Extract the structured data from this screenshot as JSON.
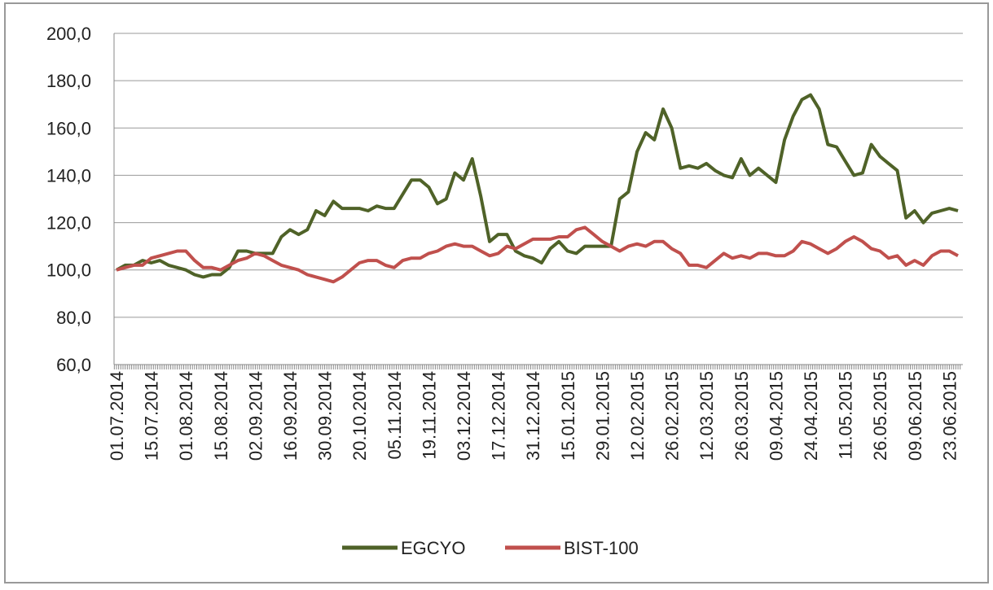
{
  "chart_data": {
    "type": "line",
    "categories": [
      "01.07.2014",
      null,
      null,
      null,
      "15.07.2014",
      null,
      null,
      null,
      "01.08.2014",
      null,
      null,
      null,
      "15.08.2014",
      null,
      null,
      null,
      "02.09.2014",
      null,
      null,
      null,
      "16.09.2014",
      null,
      null,
      null,
      "30.09.2014",
      null,
      null,
      null,
      "20.10.2014",
      null,
      null,
      null,
      "05.11.2014",
      null,
      null,
      null,
      "19.11.2014",
      null,
      null,
      null,
      "03.12.2014",
      null,
      null,
      null,
      "17.12.2014",
      null,
      null,
      null,
      "31.12.2014",
      null,
      null,
      null,
      "15.01.2015",
      null,
      null,
      null,
      "29.01.2015",
      null,
      null,
      null,
      "12.02.2015",
      null,
      null,
      null,
      "26.02.2015",
      null,
      null,
      null,
      "12.03.2015",
      null,
      null,
      null,
      "26.03.2015",
      null,
      null,
      null,
      "09.04.2015",
      null,
      null,
      null,
      "24.04.2015",
      null,
      null,
      null,
      "11.05.2015",
      null,
      null,
      null,
      "26.05.2015",
      null,
      null,
      null,
      "09.06.2015",
      null,
      null,
      null,
      "23.06.2015",
      null
    ],
    "series": [
      {
        "name": "EGCYO",
        "color": "#4f6228",
        "values": [
          100,
          102,
          102,
          104,
          103,
          104,
          102,
          101,
          100,
          98,
          97,
          98,
          98,
          101,
          108,
          108,
          107,
          107,
          107,
          114,
          117,
          115,
          117,
          125,
          123,
          129,
          126,
          126,
          126,
          125,
          127,
          126,
          126,
          132,
          138,
          138,
          135,
          128,
          130,
          141,
          138,
          147,
          131,
          112,
          115,
          115,
          108,
          106,
          105,
          103,
          109,
          112,
          108,
          107,
          110,
          110,
          110,
          110,
          130,
          133,
          150,
          158,
          155,
          168,
          160,
          143,
          144,
          143,
          145,
          142,
          140,
          139,
          147,
          140,
          143,
          140,
          137,
          155,
          165,
          172,
          174,
          168,
          153,
          152,
          146,
          140,
          141,
          153,
          148,
          145,
          142,
          122,
          125,
          120,
          124,
          125,
          126,
          125
        ]
      },
      {
        "name": "BIST-100",
        "color": "#c0504d",
        "values": [
          100,
          101,
          102,
          102,
          105,
          106,
          107,
          108,
          108,
          104,
          101,
          101,
          100,
          102,
          104,
          105,
          107,
          106,
          104,
          102,
          101,
          100,
          98,
          97,
          96,
          95,
          97,
          100,
          103,
          104,
          104,
          102,
          101,
          104,
          105,
          105,
          107,
          108,
          110,
          111,
          110,
          110,
          108,
          106,
          107,
          110,
          109,
          111,
          113,
          113,
          113,
          114,
          114,
          117,
          118,
          115,
          112,
          110,
          108,
          110,
          111,
          110,
          112,
          112,
          109,
          107,
          102,
          102,
          101,
          104,
          107,
          105,
          106,
          105,
          107,
          107,
          106,
          106,
          108,
          112,
          111,
          109,
          107,
          109,
          112,
          114,
          112,
          109,
          108,
          105,
          106,
          102,
          104,
          102,
          106,
          108,
          108,
          106
        ]
      }
    ],
    "ylim": [
      60,
      200
    ],
    "yticks": [
      {
        "value": 60,
        "label": "60,0"
      },
      {
        "value": 80,
        "label": "80,0"
      },
      {
        "value": 100,
        "label": "100,0"
      },
      {
        "value": 120,
        "label": "120,0"
      },
      {
        "value": 140,
        "label": "140,0"
      },
      {
        "value": 160,
        "label": "160,0"
      },
      {
        "value": 180,
        "label": "180,0"
      },
      {
        "value": 200,
        "label": "200,0"
      }
    ],
    "grid": true,
    "legend": "bottom"
  }
}
